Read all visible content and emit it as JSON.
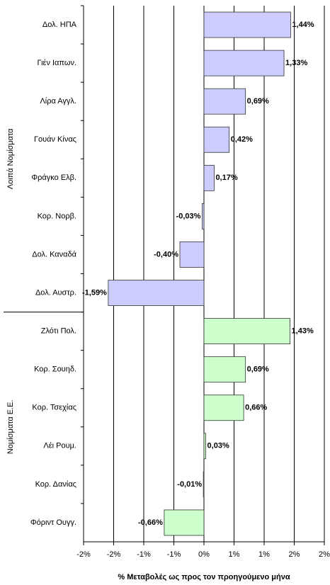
{
  "chart_data": {
    "type": "bar",
    "orientation": "horizontal",
    "x_label": "% Μεταβολές ως προς τον προηγούμενο μήνα",
    "groups": [
      {
        "label": "Λοιπά Νομίσματα",
        "color": "#ccccff",
        "categories": [
          "Δολ. ΗΠΑ",
          "Γιέν Ιαπων.",
          "Λίρα Αγγλ.",
          "Γουάν Κίνας",
          "Φράγκο Ελβ.",
          "Κορ. Νορβ.",
          "Δολ. Καναδά",
          "Δολ. Αυστρ."
        ],
        "values": [
          1.44,
          1.33,
          0.69,
          0.42,
          0.17,
          -0.03,
          -0.4,
          -1.59
        ],
        "value_labels": [
          "1,44%",
          "1,33%",
          "0,69%",
          "0,42%",
          "0,17%",
          "-0,03%",
          "-0,40%",
          "-1,59%"
        ]
      },
      {
        "label": "Νομίσματα Ε.Ε.",
        "color": "#ccffcc",
        "categories": [
          "Ζλότι Πολ.",
          "Κορ. Σουηδ.",
          "Κορ. Τσεχίας",
          "Λέι Ρουμ.",
          "Κορ. Δανίας",
          "Φόριντ Ουγγ."
        ],
        "values": [
          1.43,
          0.69,
          0.66,
          0.03,
          -0.01,
          -0.66
        ],
        "value_labels": [
          "1,43%",
          "0,69%",
          "0,66%",
          "0,03%",
          "-0,01%",
          "-0,66%"
        ]
      }
    ],
    "xlim": [
      -2,
      2
    ],
    "xticks": [
      {
        "value": -2,
        "label": "-2%"
      },
      {
        "value": -1.5,
        "label": "-2%"
      },
      {
        "value": -1,
        "label": "-1%"
      },
      {
        "value": -0.5,
        "label": "-1%"
      },
      {
        "value": 0,
        "label": "0%"
      },
      {
        "value": 0.5,
        "label": "1%"
      },
      {
        "value": 1,
        "label": "1%"
      },
      {
        "value": 1.5,
        "label": "2%"
      },
      {
        "value": 2,
        "label": "2%"
      }
    ],
    "grid": true
  }
}
